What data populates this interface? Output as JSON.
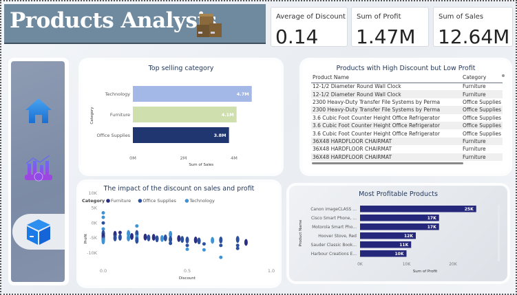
{
  "header": {
    "title": "Products Analysis",
    "title_icon": "stacked-boxes-icon"
  },
  "kpis": [
    {
      "label": "Average of Discount",
      "value": "0.14"
    },
    {
      "label": "Sum of Profit",
      "value": "1.47M"
    },
    {
      "label": "Sum of Sales",
      "value": "12.64M"
    }
  ],
  "nav": {
    "items": [
      {
        "icon": "home-icon"
      },
      {
        "icon": "sales-chart-icon"
      },
      {
        "icon": "product-box-icon",
        "active": true
      }
    ]
  },
  "colors": {
    "banner": "#6f8a9f",
    "technology": "#a3b8e6",
    "furniture": "#cfdfae",
    "office_supplies": "#1f3670",
    "profit_bar": "#25277a",
    "scatter_furniture": "#2a2f7f",
    "scatter_office": "#2c4f9e",
    "scatter_tech": "#3f93d4"
  },
  "chart_data": [
    {
      "type": "bar",
      "orientation": "horizontal",
      "title": "Top selling category",
      "xlabel": "Sum of Sales",
      "ylabel": "Category",
      "categories": [
        "Technology",
        "Furniture",
        "Office Supplies"
      ],
      "values": [
        4.7,
        4.1,
        3.8
      ],
      "data_labels": [
        "4.7M",
        "4.1M",
        "3.8M"
      ],
      "xticks": [
        "0M",
        "2M",
        "4M"
      ],
      "xlim": [
        0,
        5.2
      ],
      "unit": "M"
    },
    {
      "type": "scatter",
      "title": "The impact of the discount on sales and profit",
      "xlabel": "Discount",
      "ylabel": "Profit",
      "legend_title": "Category",
      "legend": [
        "Furniture",
        "Office Supplies",
        "Technology"
      ],
      "legend_position": "top-left",
      "xticks": [
        "0.0",
        "0.5",
        "1.0"
      ],
      "yticks": [
        "10K",
        "5K",
        "0K",
        "-5K",
        "-10K"
      ],
      "xlim": [
        0,
        1
      ],
      "ylim": [
        -10000,
        10000
      ],
      "points": [
        [
          0,
          8400,
          "Technology"
        ],
        [
          0,
          6900,
          "Technology"
        ],
        [
          0,
          5000,
          "Office Supplies"
        ],
        [
          0,
          3000,
          "Technology"
        ],
        [
          0,
          1500,
          "Office Supplies"
        ],
        [
          0,
          500,
          "Furniture"
        ],
        [
          0,
          -500,
          "Office Supplies"
        ],
        [
          0,
          -1000,
          "Technology"
        ],
        [
          0.07,
          1200,
          "Furniture"
        ],
        [
          0.07,
          0,
          "Office Supplies"
        ],
        [
          0.1,
          1800,
          "Furniture"
        ],
        [
          0.1,
          200,
          "Office Supplies"
        ],
        [
          0.15,
          1500,
          "Technology"
        ],
        [
          0.15,
          0,
          "Technology"
        ],
        [
          0.17,
          500,
          "Furniture"
        ],
        [
          0.2,
          4000,
          "Technology"
        ],
        [
          0.2,
          1500,
          "Office Supplies"
        ],
        [
          0.2,
          0,
          "Technology"
        ],
        [
          0.2,
          -800,
          "Office Supplies"
        ],
        [
          0.25,
          300,
          "Furniture"
        ],
        [
          0.27,
          0,
          "Office Supplies"
        ],
        [
          0.3,
          200,
          "Furniture"
        ],
        [
          0.32,
          -300,
          "Office Supplies"
        ],
        [
          0.35,
          -200,
          "Technology"
        ],
        [
          0.37,
          0,
          "Office Supplies"
        ],
        [
          0.4,
          1200,
          "Technology"
        ],
        [
          0.4,
          -500,
          "Office Supplies"
        ],
        [
          0.4,
          -1800,
          "Office Supplies"
        ],
        [
          0.45,
          -200,
          "Furniture"
        ],
        [
          0.47,
          -500,
          "Office Supplies"
        ],
        [
          0.5,
          -700,
          "Office Supplies"
        ],
        [
          0.5,
          -2500,
          "Office Supplies"
        ],
        [
          0.5,
          -3800,
          "Technology"
        ],
        [
          0.55,
          -700,
          "Furniture"
        ],
        [
          0.57,
          -1000,
          "Office Supplies"
        ],
        [
          0.6,
          -2000,
          "Office Supplies"
        ],
        [
          0.6,
          -4000,
          "Technology"
        ],
        [
          0.65,
          -800,
          "Technology"
        ],
        [
          0.7,
          -700,
          "Office Supplies"
        ],
        [
          0.7,
          -2500,
          "Office Supplies"
        ],
        [
          0.7,
          -6500,
          "Technology"
        ],
        [
          0.8,
          -500,
          "Office Supplies"
        ],
        [
          0.8,
          -2500,
          "Office Supplies"
        ],
        [
          0.8,
          -3500,
          "Office Supplies"
        ],
        [
          0.85,
          -1500,
          "Furniture"
        ]
      ]
    },
    {
      "type": "bar",
      "orientation": "horizontal",
      "title": "Most Profitable Products",
      "xlabel": "Sum of Profit",
      "ylabel": "Product Name",
      "categories": [
        "Canon imageCLASS ...",
        "Cisco Smart Phone, ...",
        "Motorola Smart Pho...",
        "Hoover Stove, Red",
        "Sauder Classic Book...",
        "Harbour Creations E..."
      ],
      "values": [
        25,
        17,
        17,
        12,
        11,
        10
      ],
      "data_labels": [
        "25K",
        "17K",
        "17K",
        "12K",
        "11K",
        "10K"
      ],
      "xticks": [
        "0K",
        "10K",
        "20K"
      ],
      "xlim": [
        0,
        28
      ],
      "unit": "K"
    }
  ],
  "table": {
    "title": "Products with High Discount but Low Profit",
    "columns": [
      "Product Name",
      "Category"
    ],
    "rows": [
      [
        "12-1/2 Diameter Round Wall Clock",
        "Furniture"
      ],
      [
        "12-1/2 Diameter Round Wall Clock",
        "Furniture"
      ],
      [
        "2300 Heavy-Duty Transfer File Systems by Perma",
        "Office Supplies"
      ],
      [
        "2300 Heavy-Duty Transfer File Systems by Perma",
        "Office Supplies"
      ],
      [
        "3.6 Cubic Foot Counter Height Office Refrigerator",
        "Office Supplies"
      ],
      [
        "3.6 Cubic Foot Counter Height Office Refrigerator",
        "Office Supplies"
      ],
      [
        "3.6 Cubic Foot Counter Height Office Refrigerator",
        "Office Supplies"
      ],
      [
        "36X48 HARDFLOOR CHAIRMAT",
        "Furniture"
      ],
      [
        "36X48 HARDFLOOR CHAIRMAT",
        "Furniture"
      ],
      [
        "36X48 HARDFLOOR CHAIRMAT",
        "Furniture"
      ]
    ]
  }
}
